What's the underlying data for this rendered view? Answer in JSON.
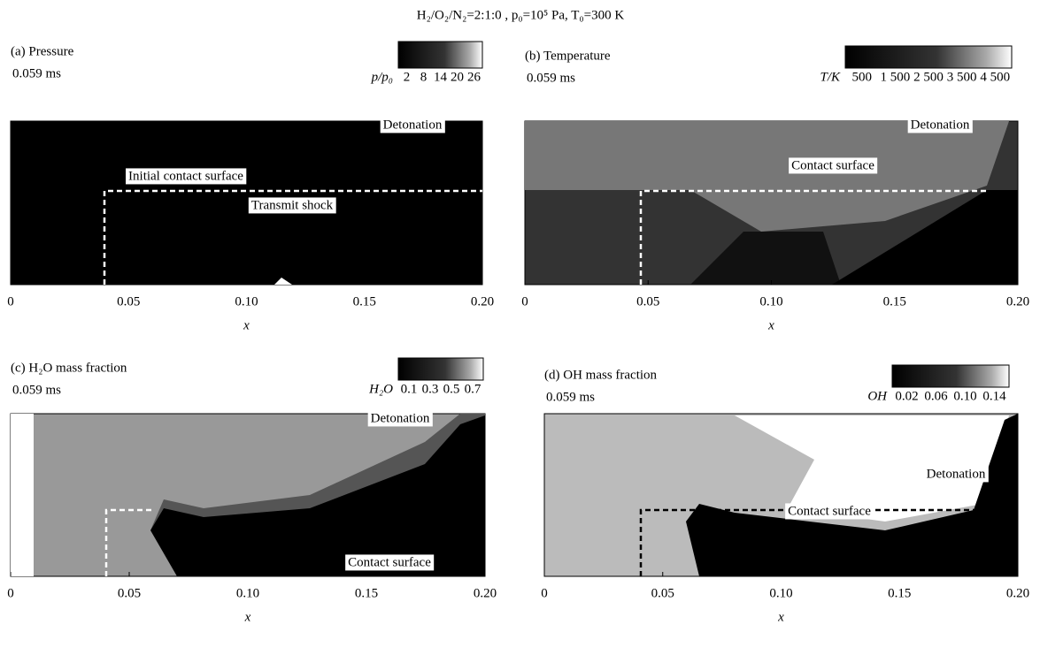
{
  "title": "H₂/O₂/N₂=2:1:0 , p₀=10⁵ Pa, T₀=300 K",
  "panels": [
    {
      "label": "(a) Pressure",
      "time": "0.059 ms",
      "colorbar": {
        "label": "p/p₀",
        "ticks": [
          "2",
          "8",
          "14",
          "20",
          "26"
        ]
      },
      "annotations": [
        "Detonation",
        "Initial contact surface",
        "Transmit shock"
      ],
      "xticks": [
        "0",
        "0.05",
        "0.10",
        "0.15",
        "0.20"
      ],
      "xlabel": "x"
    },
    {
      "label": "(b) Temperature",
      "time": "0.059 ms",
      "colorbar": {
        "label": "T/K",
        "ticks": [
          "500",
          "1 500",
          "2 500",
          "3 500",
          "4 500"
        ]
      },
      "annotations": [
        "Detonation",
        "Contact surface"
      ],
      "xticks": [
        "0",
        "0.05",
        "0.10",
        "0.15",
        "0.20"
      ],
      "xlabel": "x"
    },
    {
      "label": "(c) H₂O mass fraction",
      "time": "0.059 ms",
      "colorbar": {
        "label": "H₂O",
        "ticks": [
          "0.1",
          "0.3",
          "0.5",
          "0.7"
        ]
      },
      "annotations": [
        "Detonation",
        "Contact surface"
      ],
      "xticks": [
        "0",
        "0.05",
        "0.10",
        "0.15",
        "0.20"
      ],
      "xlabel": "x"
    },
    {
      "label": "(d) OH mass fraction",
      "time": "0.059 ms",
      "colorbar": {
        "label": "OH",
        "ticks": [
          "0.02",
          "0.06",
          "0.10",
          "0.14"
        ]
      },
      "annotations": [
        "Detonation",
        "Contact surface"
      ],
      "xticks": [
        "0",
        "0.05",
        "0.10",
        "0.15",
        "0.20"
      ],
      "xlabel": "x"
    }
  ]
}
